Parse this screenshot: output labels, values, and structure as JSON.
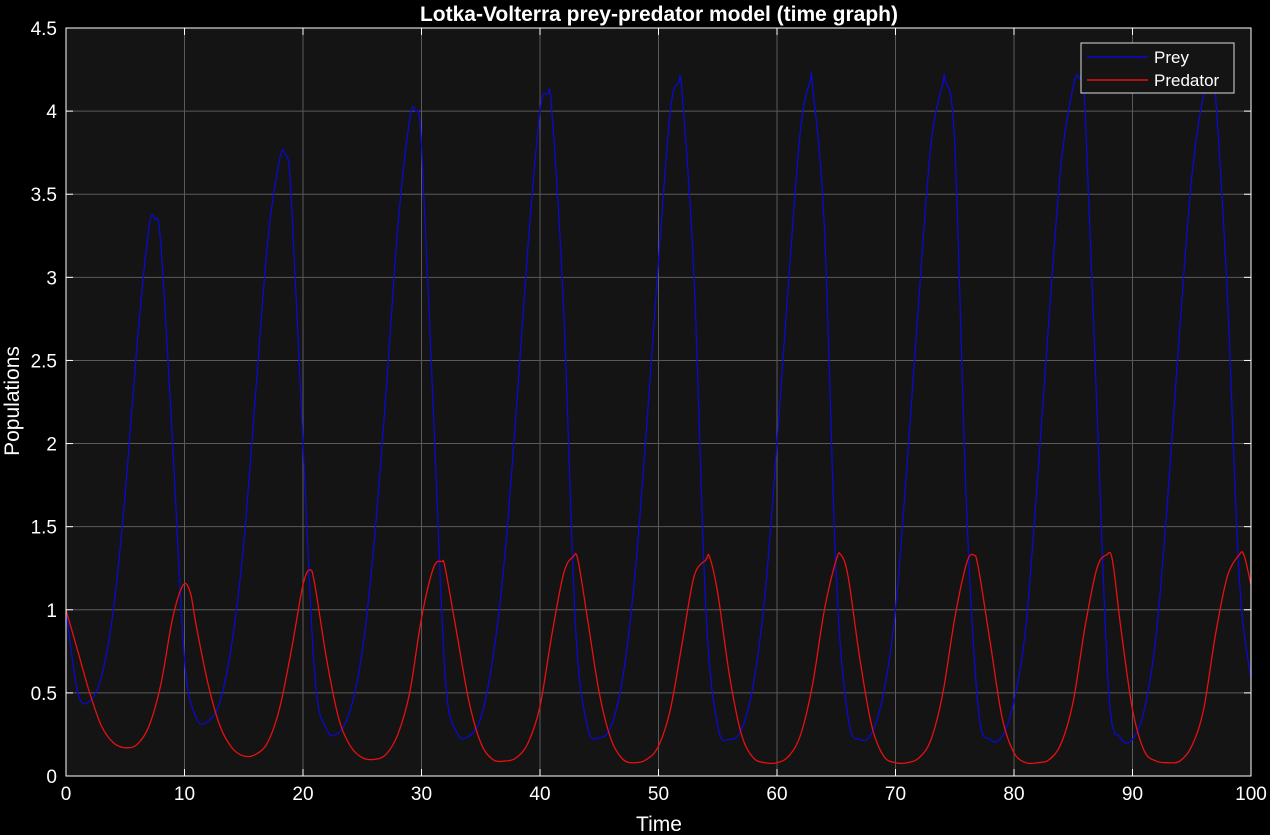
{
  "chart_data": {
    "type": "line",
    "title": "Lotka-Volterra prey-predator model (time graph)",
    "xlabel": "Time",
    "ylabel": "Populations",
    "xlim": [
      0,
      100
    ],
    "ylim": [
      0,
      4.5
    ],
    "xticks": [
      0,
      10,
      20,
      30,
      40,
      50,
      60,
      70,
      80,
      90,
      100
    ],
    "yticks": [
      0,
      0.5,
      1,
      1.5,
      2,
      2.5,
      3,
      3.5,
      4,
      4.5
    ],
    "xtick_labels": [
      "0",
      "10",
      "20",
      "30",
      "40",
      "50",
      "60",
      "70",
      "80",
      "90",
      "100"
    ],
    "ytick_labels": [
      "0",
      "0.5",
      "1",
      "1.5",
      "2",
      "2.5",
      "3",
      "3.5",
      "4",
      "4.5"
    ],
    "grid": true,
    "legend_position": "top-right",
    "colors": {
      "background": "#000000",
      "axes": "#141414",
      "grid": "#5a5a5a",
      "text": "#ffffff"
    },
    "series": [
      {
        "name": "Prey",
        "color": "#0a0ad0",
        "x": [
          0,
          1,
          2,
          3,
          4,
          5,
          6,
          7,
          7.5,
          8,
          9,
          10,
          11,
          12,
          13,
          14,
          15,
          16,
          17,
          18,
          18.5,
          19,
          20,
          21,
          22,
          23,
          24,
          25,
          26,
          27,
          28,
          29,
          29.5,
          30,
          31,
          32,
          33,
          34,
          35,
          36,
          37,
          38,
          39,
          40,
          40.6,
          41,
          42,
          43,
          44,
          45,
          46,
          47,
          48,
          49,
          50,
          51,
          51.7,
          52,
          53,
          54,
          55,
          56,
          57,
          58,
          59,
          60,
          61,
          62,
          62.8,
          63,
          64,
          65,
          66,
          67,
          68,
          69,
          70,
          71,
          72,
          73,
          74,
          74.2,
          75,
          76,
          77,
          78,
          79,
          80,
          81,
          82,
          83,
          84,
          85,
          85.5,
          86,
          87,
          88,
          89,
          90,
          91,
          92,
          93,
          94,
          95,
          96,
          96.7,
          97,
          98,
          99,
          100
        ],
        "values": [
          1.0,
          0.5,
          0.45,
          0.6,
          1.0,
          1.7,
          2.6,
          3.3,
          3.35,
          3.2,
          2.0,
          0.7,
          0.35,
          0.33,
          0.45,
          0.8,
          1.4,
          2.3,
          3.2,
          3.7,
          3.74,
          3.5,
          2.0,
          0.6,
          0.28,
          0.26,
          0.4,
          0.75,
          1.4,
          2.3,
          3.3,
          3.95,
          4.0,
          3.8,
          2.2,
          0.6,
          0.26,
          0.24,
          0.35,
          0.7,
          1.3,
          2.2,
          3.2,
          4.0,
          4.1,
          4.0,
          2.8,
          0.9,
          0.3,
          0.23,
          0.3,
          0.6,
          1.2,
          2.1,
          3.1,
          4.0,
          4.17,
          4.1,
          3.0,
          1.0,
          0.3,
          0.22,
          0.28,
          0.55,
          1.1,
          2.0,
          3.0,
          3.9,
          4.18,
          4.15,
          3.3,
          1.2,
          0.35,
          0.22,
          0.26,
          0.5,
          1.0,
          1.9,
          2.9,
          3.8,
          4.17,
          4.18,
          3.8,
          1.6,
          0.4,
          0.22,
          0.24,
          0.45,
          0.9,
          1.8,
          2.8,
          3.7,
          4.15,
          4.2,
          4.0,
          2.2,
          0.5,
          0.23,
          0.22,
          0.4,
          0.85,
          1.7,
          2.7,
          3.6,
          4.1,
          4.2,
          4.1,
          2.9,
          1.2,
          0.58
        ]
      },
      {
        "name": "Predator",
        "color": "#e81010",
        "x": [
          0,
          1,
          2,
          3,
          4,
          5,
          6,
          7,
          8,
          9,
          9.9,
          10.5,
          11,
          12,
          13,
          14,
          15,
          16,
          17,
          18,
          19,
          20,
          20.6,
          21,
          22,
          23,
          24,
          25,
          26,
          27,
          28,
          29,
          30,
          31,
          31.7,
          32,
          33,
          34,
          35,
          36,
          37,
          38,
          39,
          40,
          41,
          42,
          42.8,
          43.2,
          44,
          45,
          46,
          47,
          48,
          49,
          50,
          51,
          52,
          53,
          54,
          54.3,
          55,
          56,
          57,
          58,
          59,
          60,
          61,
          62,
          63,
          64,
          65,
          65.4,
          66,
          67,
          68,
          69,
          70,
          71,
          72,
          73,
          74,
          75,
          76,
          76.6,
          77,
          78,
          79,
          80,
          81,
          82,
          83,
          84,
          85,
          86,
          87,
          87.8,
          88.3,
          89,
          90,
          91,
          92,
          93,
          94,
          95,
          96,
          97,
          98,
          99,
          99.4,
          100
        ],
        "values": [
          1.0,
          0.75,
          0.5,
          0.3,
          0.2,
          0.17,
          0.19,
          0.3,
          0.55,
          0.95,
          1.15,
          1.1,
          0.9,
          0.55,
          0.3,
          0.17,
          0.12,
          0.13,
          0.2,
          0.4,
          0.75,
          1.15,
          1.24,
          1.15,
          0.7,
          0.35,
          0.18,
          0.11,
          0.1,
          0.13,
          0.25,
          0.5,
          0.95,
          1.25,
          1.29,
          1.25,
          0.85,
          0.45,
          0.2,
          0.1,
          0.09,
          0.11,
          0.2,
          0.42,
          0.85,
          1.22,
          1.32,
          1.3,
          0.95,
          0.5,
          0.22,
          0.1,
          0.08,
          0.1,
          0.18,
          0.4,
          0.8,
          1.2,
          1.3,
          1.32,
          1.1,
          0.6,
          0.25,
          0.11,
          0.08,
          0.08,
          0.12,
          0.25,
          0.55,
          1.0,
          1.3,
          1.33,
          1.2,
          0.7,
          0.3,
          0.12,
          0.08,
          0.08,
          0.11,
          0.22,
          0.5,
          0.95,
          1.28,
          1.33,
          1.25,
          0.8,
          0.35,
          0.14,
          0.08,
          0.08,
          0.1,
          0.2,
          0.45,
          0.9,
          1.25,
          1.33,
          1.3,
          0.9,
          0.4,
          0.15,
          0.09,
          0.08,
          0.09,
          0.18,
          0.4,
          0.85,
          1.2,
          1.33,
          1.33,
          1.15
        ]
      }
    ]
  }
}
